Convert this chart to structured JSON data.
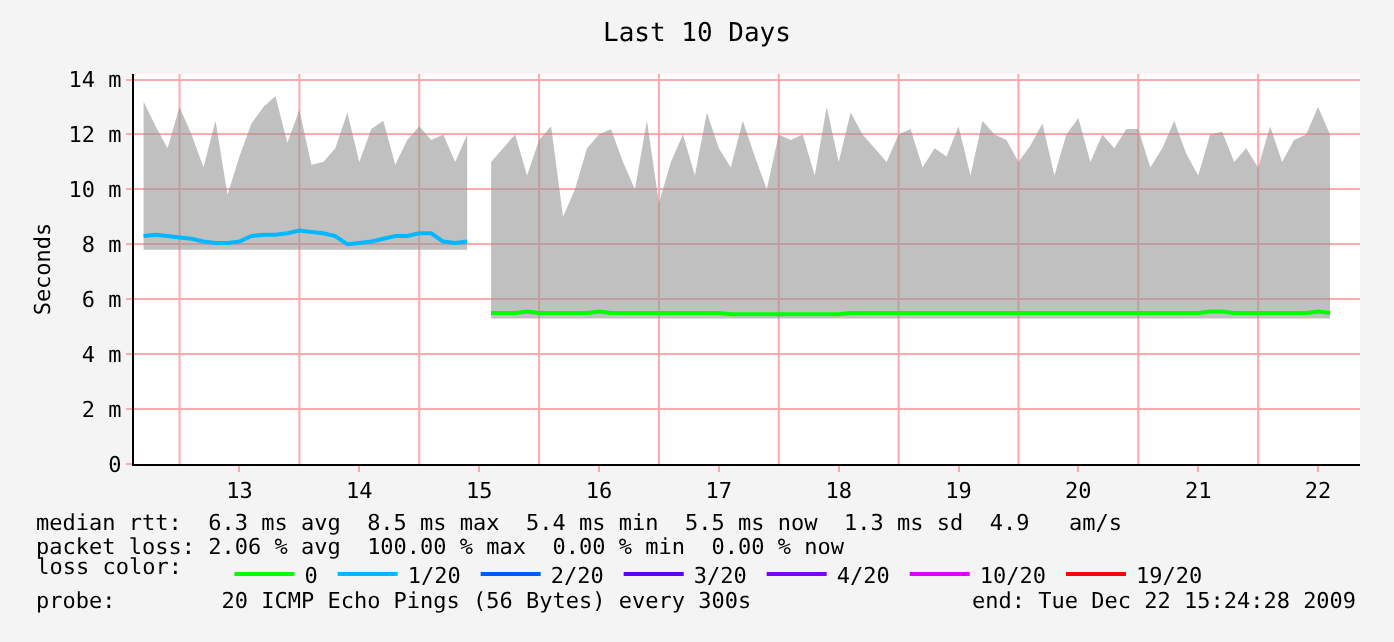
{
  "chart_data": {
    "type": "line",
    "title": "Last 10 Days",
    "ylabel": "Seconds",
    "legend_title": "loss color:",
    "legend": "bottom",
    "grid": "y",
    "marker": "none",
    "xlim": [
      12.12,
      22.35
    ],
    "xticks": [
      13,
      14,
      15,
      16,
      17,
      18,
      19,
      20,
      21,
      22
    ],
    "ylim": [
      0,
      14.2
    ],
    "yticks": [
      0,
      {
        "value": 2,
        "label": "2 m"
      },
      {
        "value": 4,
        "label": "4 m"
      },
      {
        "value": 6,
        "label": "6 m"
      },
      {
        "value": 8,
        "label": "8 m"
      },
      {
        "value": 10,
        "label": "10 m"
      },
      {
        "value": 12,
        "label": "12 m"
      },
      {
        "value": 14,
        "label": "14 m"
      }
    ],
    "ref_lines": [
      {
        "axis": "x",
        "value": 12.5,
        "color": "#ffaaaa"
      },
      {
        "axis": "x",
        "value": 13.5,
        "color": "#ffaaaa"
      },
      {
        "axis": "x",
        "value": 14.5,
        "color": "#ffaaaa"
      },
      {
        "axis": "x",
        "value": 15.5,
        "color": "#ffaaaa"
      },
      {
        "axis": "x",
        "value": 16.5,
        "color": "#ffaaaa"
      },
      {
        "axis": "x",
        "value": 17.5,
        "color": "#ffaaaa"
      },
      {
        "axis": "x",
        "value": 18.5,
        "color": "#ffaaaa"
      },
      {
        "axis": "x",
        "value": 19.5,
        "color": "#ffaaaa"
      },
      {
        "axis": "x",
        "value": 20.5,
        "color": "#ffaaaa"
      },
      {
        "axis": "x",
        "value": 21.5,
        "color": "#ffaaaa"
      }
    ],
    "series": [
      {
        "name": "0",
        "color": "#00ff00",
        "x": [
          15.1,
          15.2,
          15.3,
          15.4,
          15.5,
          15.6,
          15.7,
          15.8,
          15.9,
          16.0,
          16.1,
          16.2,
          16.3,
          16.4,
          16.5,
          16.6,
          16.7,
          16.8,
          16.9,
          17.0,
          17.1,
          17.2,
          17.3,
          17.4,
          17.5,
          17.6,
          17.7,
          17.8,
          17.9,
          18.0,
          18.1,
          18.2,
          18.3,
          18.4,
          18.5,
          18.6,
          18.7,
          18.8,
          18.9,
          19.0,
          19.1,
          19.2,
          19.3,
          19.4,
          19.5,
          19.6,
          19.7,
          19.8,
          19.9,
          20.0,
          20.1,
          20.2,
          20.3,
          20.4,
          20.5,
          20.6,
          20.7,
          20.8,
          20.9,
          21.0,
          21.1,
          21.2,
          21.3,
          21.4,
          21.5,
          21.6,
          21.7,
          21.8,
          21.9,
          22.0,
          22.1
        ],
        "values": [
          5.5,
          5.5,
          5.5,
          5.55,
          5.5,
          5.5,
          5.5,
          5.5,
          5.5,
          5.55,
          5.5,
          5.5,
          5.5,
          5.5,
          5.5,
          5.5,
          5.5,
          5.5,
          5.5,
          5.5,
          5.45,
          5.45,
          5.45,
          5.45,
          5.45,
          5.45,
          5.45,
          5.45,
          5.45,
          5.45,
          5.5,
          5.5,
          5.5,
          5.5,
          5.5,
          5.5,
          5.5,
          5.5,
          5.5,
          5.5,
          5.5,
          5.5,
          5.5,
          5.5,
          5.5,
          5.5,
          5.5,
          5.5,
          5.5,
          5.5,
          5.5,
          5.5,
          5.5,
          5.5,
          5.5,
          5.5,
          5.5,
          5.5,
          5.5,
          5.5,
          5.55,
          5.55,
          5.5,
          5.5,
          5.5,
          5.5,
          5.5,
          5.5,
          5.5,
          5.55,
          5.5
        ],
        "lower": [
          5.3,
          5.3,
          5.3,
          5.3,
          5.3,
          5.3,
          5.3,
          5.3,
          5.3,
          5.3,
          5.3,
          5.3,
          5.3,
          5.3,
          5.3,
          5.3,
          5.3,
          5.3,
          5.3,
          5.3,
          5.3,
          5.3,
          5.3,
          5.3,
          5.3,
          5.3,
          5.3,
          5.3,
          5.3,
          5.3,
          5.3,
          5.3,
          5.3,
          5.3,
          5.3,
          5.3,
          5.3,
          5.3,
          5.3,
          5.3,
          5.3,
          5.3,
          5.3,
          5.3,
          5.3,
          5.3,
          5.3,
          5.3,
          5.3,
          5.3,
          5.3,
          5.3,
          5.3,
          5.3,
          5.3,
          5.3,
          5.3,
          5.3,
          5.3,
          5.3,
          5.3,
          5.3,
          5.3,
          5.3,
          5.3,
          5.3,
          5.3,
          5.3,
          5.3,
          5.3,
          5.3
        ],
        "upper": [
          11.0,
          11.5,
          12.0,
          10.5,
          11.8,
          12.3,
          9.0,
          10.0,
          11.5,
          12.0,
          12.2,
          11.0,
          10.0,
          12.5,
          9.5,
          11.0,
          12.0,
          10.5,
          12.8,
          11.5,
          10.8,
          12.5,
          11.2,
          10.0,
          12.0,
          11.8,
          12.0,
          10.5,
          13.0,
          11.0,
          12.8,
          12.0,
          11.5,
          11.0,
          12.0,
          12.2,
          10.8,
          11.5,
          11.2,
          12.3,
          10.5,
          12.5,
          12.0,
          11.8,
          11.0,
          11.6,
          12.4,
          10.5,
          12.0,
          12.6,
          11.0,
          12.0,
          11.5,
          12.2,
          12.2,
          10.8,
          11.5,
          12.5,
          11.3,
          10.5,
          12.0,
          12.1,
          11.0,
          11.5,
          10.8,
          12.3,
          11.0,
          11.8,
          12.0,
          13.0,
          12.0
        ]
      },
      {
        "name": "1/20",
        "color": "#00b8ff",
        "x": [
          12.2,
          12.3,
          12.4,
          12.5,
          12.6,
          12.7,
          12.8,
          12.9,
          13.0,
          13.1,
          13.2,
          13.3,
          13.4,
          13.5,
          13.6,
          13.7,
          13.8,
          13.9,
          14.0,
          14.1,
          14.2,
          14.3,
          14.4,
          14.5,
          14.6,
          14.7,
          14.8,
          14.9
        ],
        "values": [
          8.3,
          8.35,
          8.3,
          8.25,
          8.2,
          8.1,
          8.05,
          8.05,
          8.1,
          8.3,
          8.35,
          8.35,
          8.4,
          8.5,
          8.45,
          8.4,
          8.3,
          8.0,
          8.05,
          8.1,
          8.2,
          8.3,
          8.3,
          8.4,
          8.4,
          8.1,
          8.05,
          8.1
        ],
        "lower": [
          7.8,
          7.8,
          7.8,
          7.8,
          7.8,
          7.8,
          7.8,
          7.8,
          7.8,
          7.8,
          7.8,
          7.8,
          7.8,
          7.8,
          7.8,
          7.8,
          7.8,
          7.8,
          7.8,
          7.8,
          7.8,
          7.8,
          7.8,
          7.8,
          7.8,
          7.8,
          7.8,
          7.8
        ],
        "upper": [
          13.2,
          12.3,
          11.5,
          13.0,
          12.0,
          10.8,
          12.5,
          9.8,
          11.2,
          12.4,
          13.0,
          13.4,
          11.7,
          12.9,
          10.9,
          11.0,
          11.5,
          12.8,
          11.0,
          12.2,
          12.5,
          10.9,
          11.8,
          12.3,
          11.8,
          12.0,
          11.0,
          12.0
        ]
      },
      {
        "name": "2/20",
        "color": "#0059ff",
        "values": [
          null
        ]
      },
      {
        "name": "3/20",
        "color": "#5e00ff",
        "values": [
          null
        ]
      },
      {
        "name": "4/20",
        "color": "#7e00ff",
        "values": [
          null
        ]
      },
      {
        "name": "10/20",
        "color": "#dd00ff",
        "values": [
          null
        ]
      },
      {
        "name": "19/20",
        "color": "#ff0000",
        "values": [
          null
        ]
      }
    ],
    "annotations": [
      "median rtt:  6.3 ms avg  8.5 ms max  5.4 ms min  5.5 ms now  1.3 ms sd  4.9   am/s",
      "packet loss: 2.06 % avg  100.00 % max  0.00 % min  0.00 % now",
      "probe:        20 ICMP Echo Pings (56 Bytes) every 300s",
      "end: Tue Dec 22 15:24:28 2009"
    ]
  }
}
